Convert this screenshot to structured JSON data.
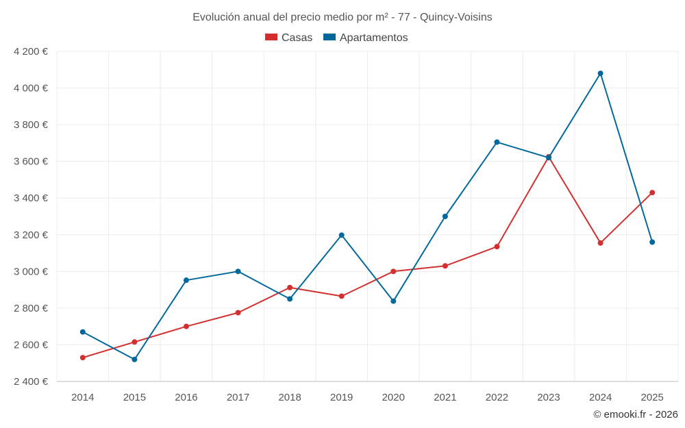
{
  "chart_data": {
    "type": "line",
    "title": "Evolución anual del precio medio por m² - 77 - Quincy-Voisins",
    "categories": [
      "2014",
      "2015",
      "2016",
      "2017",
      "2018",
      "2019",
      "2020",
      "2021",
      "2022",
      "2023",
      "2024",
      "2025"
    ],
    "series": [
      {
        "name": "Casas",
        "color": "#d32f2f",
        "values": [
          2530,
          2615,
          2700,
          2775,
          2912,
          2865,
          3000,
          3030,
          3135,
          3625,
          3155,
          3430
        ]
      },
      {
        "name": "Apartamentos",
        "color": "#01689b",
        "values": [
          2670,
          2520,
          2952,
          3000,
          2850,
          3198,
          2838,
          3300,
          3705,
          3620,
          4080,
          3160
        ]
      }
    ],
    "ylim": [
      2400,
      4200
    ],
    "yticks": [
      2400,
      2600,
      2800,
      3000,
      3200,
      3400,
      3600,
      3800,
      4000,
      4200
    ],
    "ytick_labels": [
      "2 400 €",
      "2 600 €",
      "2 800 €",
      "3 000 €",
      "3 200 €",
      "3 400 €",
      "3 600 €",
      "3 800 €",
      "4 000 €",
      "4 200 €"
    ],
    "grid": true,
    "legend_position": "top-center",
    "xlabel": "",
    "ylabel": ""
  },
  "credit": "© emooki.fr - 2026"
}
